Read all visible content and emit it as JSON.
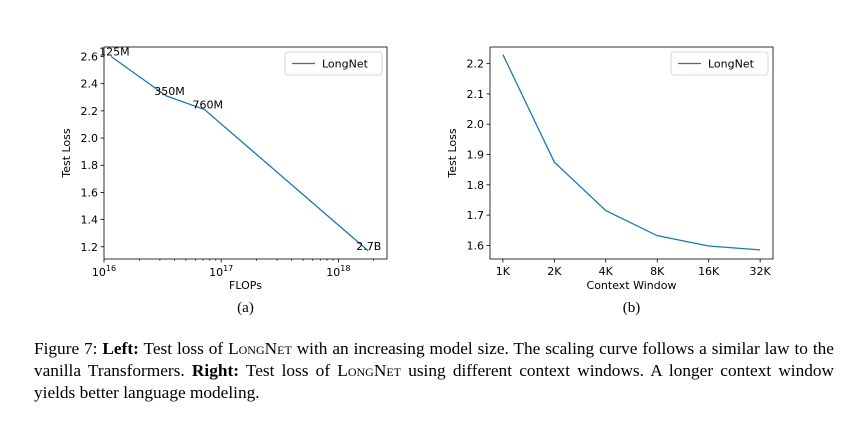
{
  "caption": {
    "fig_label": "Figure 7:",
    "left_label": "Left:",
    "left_text_1": "Test loss of",
    "model_name_1": "LongNet",
    "left_text_2": "with an increasing model size. The scaling curve follows a similar law to the vanilla Transformers.",
    "right_label": "Right:",
    "right_text_1": "Test loss of",
    "model_name_2": "LongNet",
    "right_text_2": "using different context windows. A longer context window yields better language modeling."
  },
  "chart_data": [
    {
      "type": "line",
      "sublabel": "(a)",
      "xlabel": "FLOPs",
      "ylabel": "Test Loss",
      "xscale": "log",
      "xlim": [
        1e+16,
        2.6e+18
      ],
      "ylim": [
        1.11,
        2.67
      ],
      "xtick_values": [
        1e+16,
        1e+17,
        1e+18
      ],
      "xtick_labels": [
        {
          "base": "10",
          "exp": "16"
        },
        {
          "base": "10",
          "exp": "17"
        },
        {
          "base": "10",
          "exp": "18"
        }
      ],
      "ytick_values": [
        1.2,
        1.4,
        1.6,
        1.8,
        2.0,
        2.2,
        2.4,
        2.6
      ],
      "ytick_labels": [
        "1.2",
        "1.4",
        "1.6",
        "1.8",
        "2.0",
        "2.2",
        "2.4",
        "2.6"
      ],
      "legend": "top-right",
      "series": [
        {
          "name": "LongNet",
          "color": "#1f77b4",
          "x": [
            1.15e+16,
            3.4e+16,
            7.2e+16,
            1.8e+18
          ],
          "y": [
            2.6,
            2.31,
            2.21,
            1.17
          ]
        }
      ],
      "annotations": [
        {
          "text": "125M",
          "x": 1.15e+16,
          "y": 2.6
        },
        {
          "text": "350M",
          "x": 3.4e+16,
          "y": 2.31
        },
        {
          "text": "760M",
          "x": 7.2e+16,
          "y": 2.21
        },
        {
          "text": "2.7B",
          "x": 1.8e+18,
          "y": 1.17
        }
      ]
    },
    {
      "type": "line",
      "sublabel": "(b)",
      "xlabel": "Context Window",
      "ylabel": "Test Loss",
      "categories": [
        "1K",
        "2K",
        "4K",
        "8K",
        "16K",
        "32K"
      ],
      "ylim": [
        1.555,
        2.255
      ],
      "ytick_values": [
        1.6,
        1.7,
        1.8,
        1.9,
        2.0,
        2.1,
        2.2
      ],
      "ytick_labels": [
        "1.6",
        "1.7",
        "1.8",
        "1.9",
        "2.0",
        "2.1",
        "2.2"
      ],
      "legend": "top-right",
      "series": [
        {
          "name": "LongNet",
          "color": "#1f77b4",
          "values": [
            2.23,
            1.875,
            1.715,
            1.632,
            1.598,
            1.585
          ]
        }
      ]
    }
  ]
}
